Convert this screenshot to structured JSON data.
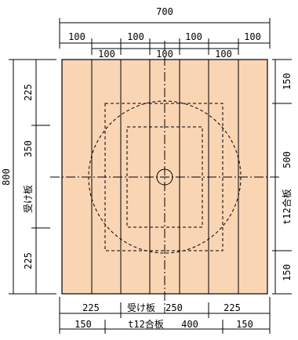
{
  "colors": {
    "board_fill": "#FAD5B4",
    "line": "#000000"
  },
  "top": {
    "overall": "700",
    "row1": [
      "100",
      "100",
      "100",
      "100"
    ],
    "row2": [
      "100",
      "100",
      "100"
    ]
  },
  "left": {
    "overall": "800",
    "segments": [
      "225",
      "350",
      "225"
    ],
    "title": "受け板"
  },
  "right": {
    "segments": [
      "150",
      "500",
      "150"
    ],
    "title": "t12合板"
  },
  "bottom": {
    "row1": {
      "left": "225",
      "center_title": "受け板",
      "center_value": "250",
      "right": "225"
    },
    "row2": {
      "left": "150",
      "center_title": "t12合板",
      "center_value": "400",
      "right": "150"
    }
  }
}
